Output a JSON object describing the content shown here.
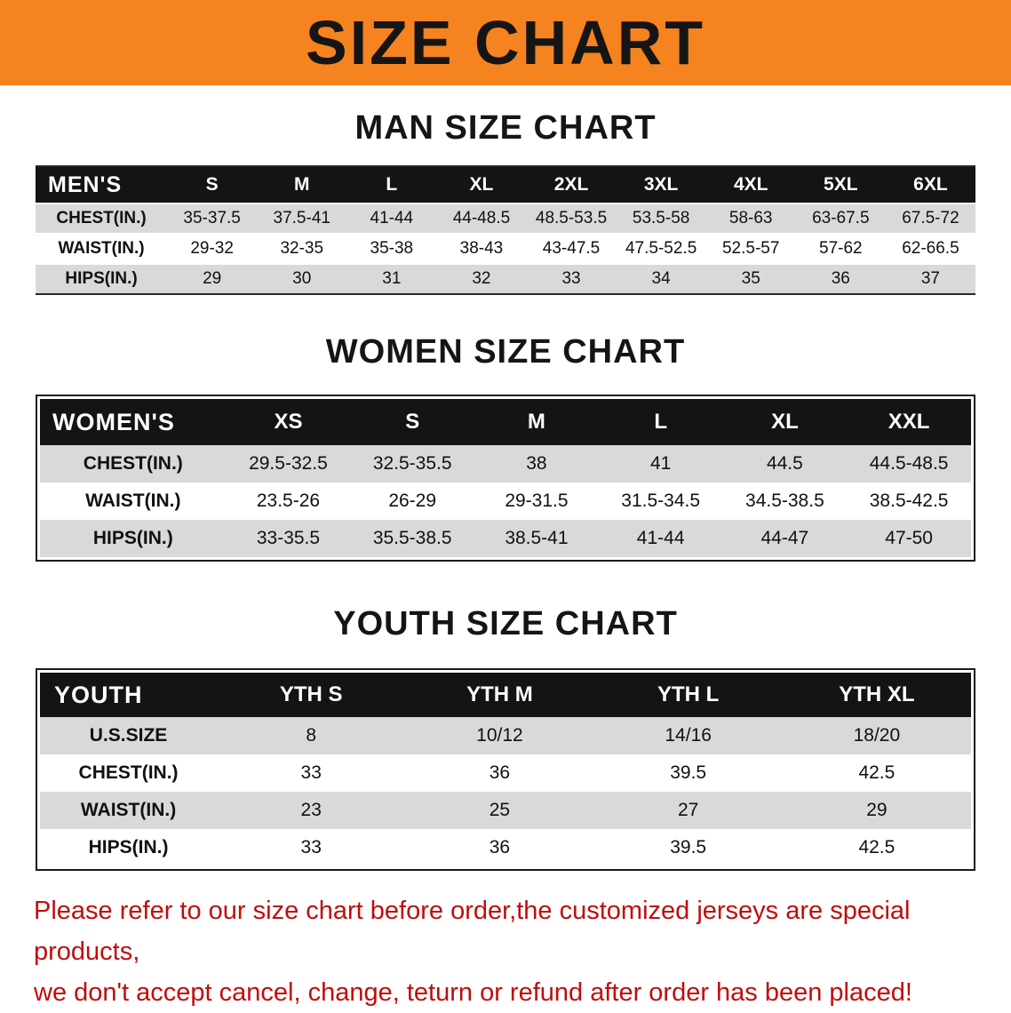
{
  "banner": {
    "title": "SIZE CHART"
  },
  "colors": {
    "banner_orange": "#F5831F",
    "table_header_black": "#141414",
    "row_gray": "#D9D9D9",
    "disclaimer_red": "#C00D0D"
  },
  "sections": [
    {
      "heading": "MAN SIZE CHART",
      "table": {
        "header": [
          "MEN'S",
          "S",
          "M",
          "L",
          "XL",
          "2XL",
          "3XL",
          "4XL",
          "5XL",
          "6XL"
        ],
        "rows": [
          [
            "CHEST(IN.)",
            "35-37.5",
            "37.5-41",
            "41-44",
            "44-48.5",
            "48.5-53.5",
            "53.5-58",
            "58-63",
            "63-67.5",
            "67.5-72"
          ],
          [
            "WAIST(IN.)",
            "29-32",
            "32-35",
            "35-38",
            "38-43",
            "43-47.5",
            "47.5-52.5",
            "52.5-57",
            "57-62",
            "62-66.5"
          ],
          [
            "HIPS(IN.)",
            "29",
            "30",
            "31",
            "32",
            "33",
            "34",
            "35",
            "36",
            "37"
          ]
        ]
      }
    },
    {
      "heading": "WOMEN SIZE CHART",
      "table": {
        "header": [
          "WOMEN'S",
          "XS",
          "S",
          "M",
          "L",
          "XL",
          "XXL"
        ],
        "rows": [
          [
            "CHEST(IN.)",
            "29.5-32.5",
            "32.5-35.5",
            "38",
            "41",
            "44.5",
            "44.5-48.5"
          ],
          [
            "WAIST(IN.)",
            "23.5-26",
            "26-29",
            "29-31.5",
            "31.5-34.5",
            "34.5-38.5",
            "38.5-42.5"
          ],
          [
            "HIPS(IN.)",
            "33-35.5",
            "35.5-38.5",
            "38.5-41",
            "41-44",
            "44-47",
            "47-50"
          ]
        ]
      }
    },
    {
      "heading": "YOUTH SIZE CHART",
      "table": {
        "header": [
          "YOUTH",
          "YTH S",
          "YTH M",
          "YTH L",
          "YTH XL"
        ],
        "rows": [
          [
            "U.S.SIZE",
            "8",
            "10/12",
            "14/16",
            "18/20"
          ],
          [
            "CHEST(IN.)",
            "33",
            "36",
            "39.5",
            "42.5"
          ],
          [
            "WAIST(IN.)",
            "23",
            "25",
            "27",
            "29"
          ],
          [
            "HIPS(IN.)",
            "33",
            "36",
            "39.5",
            "42.5"
          ]
        ]
      }
    }
  ],
  "disclaimer": {
    "lines": [
      "Please refer to our size chart before order,the customized jerseys are special products,",
      "we don't accept cancel, change, teturn or refund after order has been placed!"
    ]
  }
}
